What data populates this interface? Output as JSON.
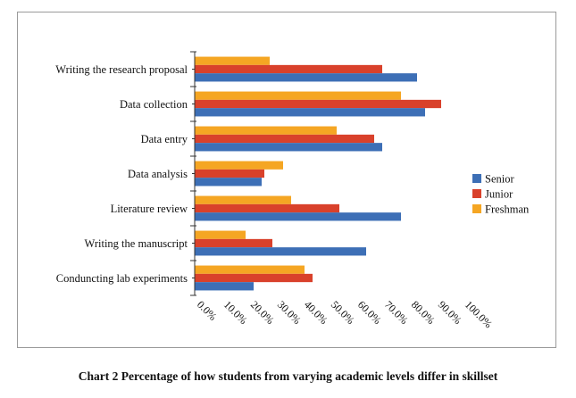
{
  "caption": "Chart 2 Percentage of how students from varying academic levels differ in skillset",
  "chart_data": {
    "type": "bar",
    "orientation": "horizontal",
    "categories": [
      "Writing the research proposal",
      "Data collection",
      "Data entry",
      "Data analysis",
      "Literature review",
      "Writing the manuscript",
      "Conduncting lab experiments"
    ],
    "series": [
      {
        "name": "Freshman",
        "color": "#f5a623",
        "values": [
          28,
          77,
          53,
          33,
          36,
          19,
          41
        ]
      },
      {
        "name": "Junior",
        "color": "#d9412b",
        "values": [
          70,
          92,
          67,
          26,
          54,
          29,
          44
        ]
      },
      {
        "name": "Senior",
        "color": "#3d6fb6",
        "values": [
          83,
          86,
          70,
          25,
          77,
          64,
          22
        ]
      }
    ],
    "legend_order": [
      "Senior",
      "Junior",
      "Freshman"
    ],
    "xlim": [
      0,
      100
    ],
    "xticks": [
      "0.0%",
      "10.0%",
      "20.0%",
      "30.0%",
      "40.0%",
      "50.0%",
      "60.0%",
      "70.0%",
      "80.0%",
      "90.0%",
      "100.0%"
    ],
    "grid": false,
    "legend_position": "right"
  }
}
